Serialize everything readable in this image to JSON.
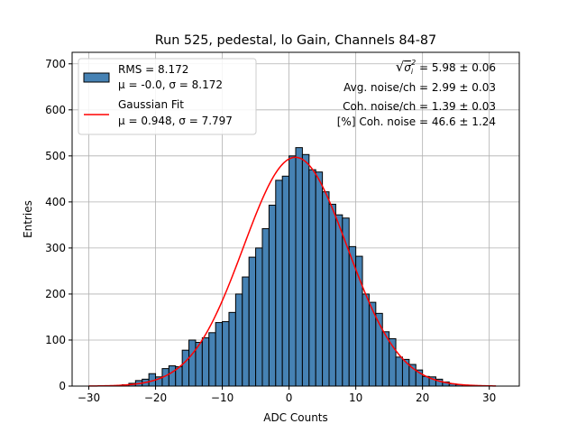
{
  "chart_data": {
    "type": "bar",
    "title": "Run 525, pedestal, lo Gain, Channels 84-87",
    "xlabel": "ADC Counts",
    "ylabel": "Entries",
    "xlim": [
      -32.5,
      34.5
    ],
    "ylim": [
      0,
      725
    ],
    "xticks": [
      -30,
      -20,
      -10,
      0,
      10,
      20,
      30
    ],
    "yticks": [
      0,
      100,
      200,
      300,
      400,
      500,
      600,
      700
    ],
    "grid": true,
    "bin_width": 1,
    "bins": [
      {
        "left": -25,
        "count": 3
      },
      {
        "left": -24,
        "count": 6
      },
      {
        "left": -23,
        "count": 12
      },
      {
        "left": -22,
        "count": 15
      },
      {
        "left": -21,
        "count": 27
      },
      {
        "left": -20,
        "count": 20
      },
      {
        "left": -19,
        "count": 38
      },
      {
        "left": -18,
        "count": 44
      },
      {
        "left": -17,
        "count": 42
      },
      {
        "left": -16,
        "count": 78
      },
      {
        "left": -15,
        "count": 100
      },
      {
        "left": -14,
        "count": 95
      },
      {
        "left": -13,
        "count": 105
      },
      {
        "left": -12,
        "count": 116
      },
      {
        "left": -11,
        "count": 138
      },
      {
        "left": -10,
        "count": 140
      },
      {
        "left": -9,
        "count": 160
      },
      {
        "left": -8,
        "count": 200
      },
      {
        "left": -7,
        "count": 237
      },
      {
        "left": -6,
        "count": 280
      },
      {
        "left": -5,
        "count": 300
      },
      {
        "left": -4,
        "count": 342
      },
      {
        "left": -3,
        "count": 393
      },
      {
        "left": -2,
        "count": 447
      },
      {
        "left": -1,
        "count": 456
      },
      {
        "left": 0,
        "count": 500
      },
      {
        "left": 1,
        "count": 518
      },
      {
        "left": 2,
        "count": 503
      },
      {
        "left": 3,
        "count": 470
      },
      {
        "left": 4,
        "count": 465
      },
      {
        "left": 5,
        "count": 422
      },
      {
        "left": 6,
        "count": 395
      },
      {
        "left": 7,
        "count": 372
      },
      {
        "left": 8,
        "count": 365
      },
      {
        "left": 9,
        "count": 303
      },
      {
        "left": 10,
        "count": 282
      },
      {
        "left": 11,
        "count": 200
      },
      {
        "left": 12,
        "count": 182
      },
      {
        "left": 13,
        "count": 158
      },
      {
        "left": 14,
        "count": 118
      },
      {
        "left": 15,
        "count": 103
      },
      {
        "left": 16,
        "count": 63
      },
      {
        "left": 17,
        "count": 58
      },
      {
        "left": 18,
        "count": 47
      },
      {
        "left": 19,
        "count": 35
      },
      {
        "left": 20,
        "count": 21
      },
      {
        "left": 21,
        "count": 20
      },
      {
        "left": 22,
        "count": 15
      },
      {
        "left": 23,
        "count": 9
      },
      {
        "left": 24,
        "count": 5
      },
      {
        "left": 25,
        "count": 3
      }
    ],
    "series": [
      {
        "name": "RMS = 8.172",
        "stats": "μ = -0.0, σ = 8.172",
        "kind": "histogram",
        "color": "#4682b4",
        "edge_color": "#000000"
      },
      {
        "name": "Gaussian Fit",
        "stats": "μ = 0.948, σ = 7.797",
        "kind": "line",
        "color": "#ff0000",
        "amplitude": 497,
        "mu": 0.948,
        "sigma": 7.797,
        "x_range": [
          -30,
          31
        ]
      }
    ],
    "legend_position": "upper-left",
    "annotations": [
      {
        "prefix": "√",
        "symbol": "σ",
        "sub": "i",
        "sup": "2",
        "text": " = 5.98 ± 0.06"
      },
      {
        "text": "Avg. noise/ch = 2.99 ± 0.03"
      },
      {
        "text": "Coh. noise/ch = 1.39 ± 0.03"
      },
      {
        "text": "[%] Coh. noise = 46.6 ± 1.24"
      }
    ]
  }
}
